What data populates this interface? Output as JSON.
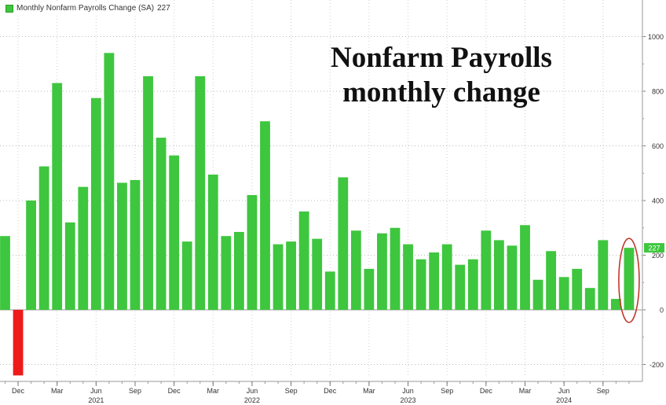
{
  "legend": {
    "label": "Monthly Nonfarm Payrolls Change (SA)",
    "last_value": "227"
  },
  "headline": {
    "line1": "Nonfarm Payrolls",
    "line2": "monthly change"
  },
  "colors": {
    "positive_bar": "#3ec63e",
    "negative_bar": "#ee1b1b",
    "highlight_ring": "#c0392b",
    "value_badge": "#3ec63e"
  },
  "chart_data": {
    "type": "bar",
    "title": "Nonfarm Payrolls monthly change",
    "x": [
      "2020-11",
      "2020-12",
      "2021-01",
      "2021-02",
      "2021-03",
      "2021-04",
      "2021-05",
      "2021-06",
      "2021-07",
      "2021-08",
      "2021-09",
      "2021-10",
      "2021-11",
      "2021-12",
      "2022-01",
      "2022-02",
      "2022-03",
      "2022-04",
      "2022-05",
      "2022-06",
      "2022-07",
      "2022-08",
      "2022-09",
      "2022-10",
      "2022-11",
      "2022-12",
      "2023-01",
      "2023-02",
      "2023-03",
      "2023-04",
      "2023-05",
      "2023-06",
      "2023-07",
      "2023-08",
      "2023-09",
      "2023-10",
      "2023-11",
      "2023-12",
      "2024-01",
      "2024-02",
      "2024-03",
      "2024-04",
      "2024-05",
      "2024-06",
      "2024-07",
      "2024-08",
      "2024-09",
      "2024-10",
      "2024-11"
    ],
    "series": [
      {
        "name": "Monthly Nonfarm Payrolls Change (SA)",
        "values": [
          270,
          -240,
          400,
          525,
          830,
          320,
          450,
          775,
          940,
          465,
          475,
          855,
          630,
          565,
          250,
          855,
          495,
          270,
          285,
          420,
          690,
          240,
          250,
          360,
          260,
          140,
          485,
          290,
          150,
          280,
          300,
          240,
          185,
          210,
          240,
          165,
          185,
          290,
          255,
          235,
          310,
          110,
          215,
          120,
          150,
          80,
          255,
          40,
          227
        ]
      }
    ],
    "ylim": [
      -270,
      1130
    ],
    "yticks": [
      -200,
      0,
      200,
      400,
      600,
      800,
      1000
    ],
    "ytick_labels": [
      "-200",
      "0",
      "200",
      "400",
      "600",
      "800",
      "1000"
    ],
    "month_ticks": [
      {
        "label": "Dec",
        "x": "2020-12"
      },
      {
        "label": "Mar",
        "x": "2021-03"
      },
      {
        "label": "Jun",
        "x": "2021-06"
      },
      {
        "label": "Sep",
        "x": "2021-09"
      },
      {
        "label": "Dec",
        "x": "2021-12"
      },
      {
        "label": "Mar",
        "x": "2022-03"
      },
      {
        "label": "Jun",
        "x": "2022-06"
      },
      {
        "label": "Sep",
        "x": "2022-09"
      },
      {
        "label": "Dec",
        "x": "2022-12"
      },
      {
        "label": "Mar",
        "x": "2023-03"
      },
      {
        "label": "Jun",
        "x": "2023-06"
      },
      {
        "label": "Sep",
        "x": "2023-09"
      },
      {
        "label": "Dec",
        "x": "2023-12"
      },
      {
        "label": "Mar",
        "x": "2024-03"
      },
      {
        "label": "Jun",
        "x": "2024-06"
      },
      {
        "label": "Sep",
        "x": "2024-09"
      }
    ],
    "year_ticks": [
      {
        "label": "2021",
        "x": "2021-06"
      },
      {
        "label": "2022",
        "x": "2022-06"
      },
      {
        "label": "2023",
        "x": "2023-06"
      },
      {
        "label": "2024",
        "x": "2024-06"
      }
    ],
    "last_value_label": "227",
    "highlighted_bar": "2024-11",
    "grid": true,
    "legend_position": "top-left"
  }
}
